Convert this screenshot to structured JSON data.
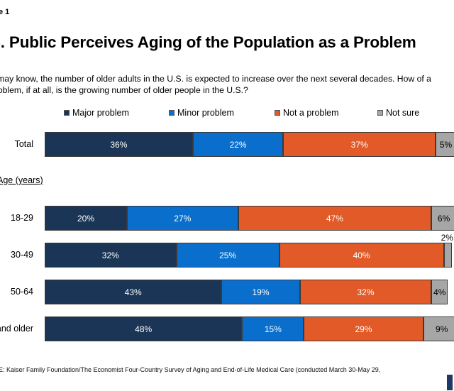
{
  "figure_label": "e 1",
  "title": "S. Public Perceives Aging of the Population as a Problem",
  "question": "u may know, the number of older adults in the U.S. is expected to increase over the next several decades. How of a problem, if at all, is the growing number of older people in the U.S.?",
  "group_label": "Age (years)",
  "source": "E: Kaiser Family Foundation/The Economist Four-Country Survey of Aging and End-of-Life Medical Care (conducted March 30-May 29,",
  "colors": {
    "major": "#1b3556",
    "minor": "#0a6fcc",
    "not": "#e15a27",
    "unsure": "#a6a6a6"
  },
  "chart_data": {
    "type": "bar",
    "orientation": "horizontal",
    "stacked": true,
    "legend_position": "top",
    "categories": [
      "Total",
      "18-29",
      "30-49",
      "50-64",
      "and older"
    ],
    "series": [
      {
        "name": "Major problem",
        "key": "major",
        "values": [
          36,
          20,
          32,
          43,
          48
        ],
        "labels": [
          "36%",
          "20%",
          "32%",
          "43%",
          "48%"
        ]
      },
      {
        "name": "Minor problem",
        "key": "minor",
        "values": [
          22,
          27,
          25,
          19,
          15
        ],
        "labels": [
          "22%",
          "27%",
          "25%",
          "19%",
          "15%"
        ]
      },
      {
        "name": "Not a problem",
        "key": "not",
        "values": [
          37,
          47,
          40,
          32,
          29
        ],
        "labels": [
          "37%",
          "47%",
          "40%",
          "32%",
          "29%"
        ]
      },
      {
        "name": "Not sure",
        "key": "unsure",
        "values": [
          5,
          6,
          2,
          4,
          9
        ],
        "labels": [
          "5%",
          "6%",
          "2%",
          "4%",
          "9%"
        ]
      }
    ],
    "xlim": [
      0,
      100
    ]
  }
}
